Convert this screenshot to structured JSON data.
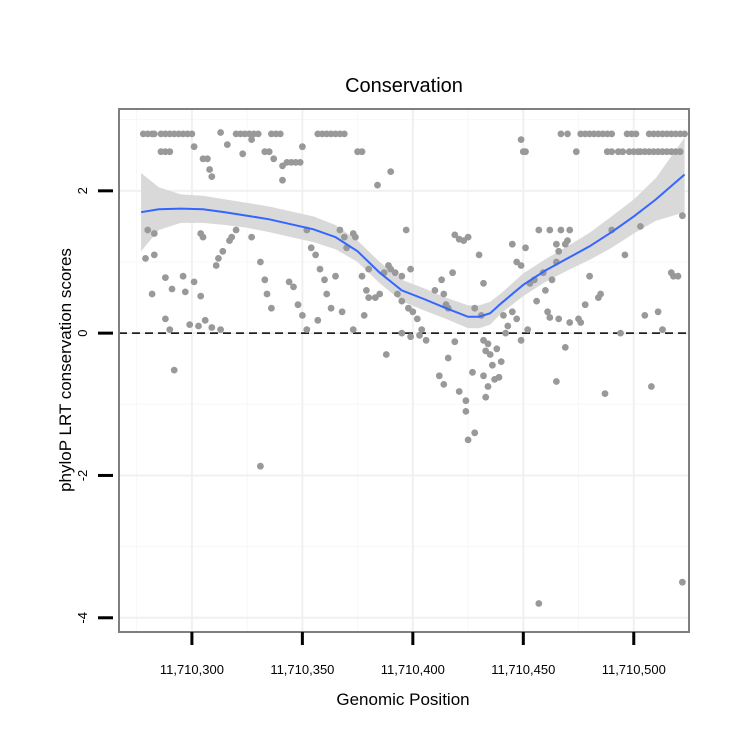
{
  "chart_data": {
    "type": "scatter",
    "title": "Conservation",
    "xlabel": "Genomic Position",
    "ylabel": "phyloP LRT conservation scores",
    "xlim": [
      11710267,
      11710525
    ],
    "ylim": [
      -4.2,
      3.15
    ],
    "x_ticks": [
      11710300,
      11710350,
      11710400,
      11710450,
      11710500
    ],
    "x_tick_labels": [
      "11,710,300",
      "11,710,350",
      "11,710,400",
      "11,710,450",
      "11,710,500"
    ],
    "y_ticks": [
      -4,
      -2,
      0,
      2
    ],
    "y_tick_labels": [
      "-4",
      "-2",
      "0",
      "2"
    ],
    "grid": true,
    "hline": {
      "y": 0,
      "style": "dashed"
    },
    "point_color": "#999999",
    "smooth_color": "#3366FF",
    "band_color": "#D9D9D9",
    "points": [
      [
        11710278,
        2.8
      ],
      [
        11710280,
        2.8
      ],
      [
        11710282,
        2.8
      ],
      [
        11710283,
        2.8
      ],
      [
        11710286,
        2.8
      ],
      [
        11710288,
        2.8
      ],
      [
        11710290,
        2.8
      ],
      [
        11710292,
        2.8
      ],
      [
        11710294,
        2.8
      ],
      [
        11710296,
        2.8
      ],
      [
        11710298,
        2.8
      ],
      [
        11710300,
        2.8
      ],
      [
        11710286,
        2.55
      ],
      [
        11710288,
        2.55
      ],
      [
        11710290,
        2.55
      ],
      [
        11710301,
        2.62
      ],
      [
        11710305,
        2.45
      ],
      [
        11710307,
        2.45
      ],
      [
        11710308,
        2.3
      ],
      [
        11710309,
        2.2
      ],
      [
        11710313,
        2.82
      ],
      [
        11710316,
        2.65
      ],
      [
        11710320,
        2.8
      ],
      [
        11710322,
        2.8
      ],
      [
        11710324,
        2.8
      ],
      [
        11710326,
        2.8
      ],
      [
        11710328,
        2.8
      ],
      [
        11710330,
        2.8
      ],
      [
        11710336,
        2.8
      ],
      [
        11710338,
        2.8
      ],
      [
        11710340,
        2.8
      ],
      [
        11710323,
        2.52
      ],
      [
        11710327,
        2.72
      ],
      [
        11710333,
        2.55
      ],
      [
        11710335,
        2.55
      ],
      [
        11710337,
        2.45
      ],
      [
        11710341,
        2.35
      ],
      [
        11710343,
        2.4
      ],
      [
        11710345,
        2.4
      ],
      [
        11710347,
        2.4
      ],
      [
        11710349,
        2.4
      ],
      [
        11710350,
        2.62
      ],
      [
        11710341,
        2.15
      ],
      [
        11710357,
        2.8
      ],
      [
        11710359,
        2.8
      ],
      [
        11710361,
        2.8
      ],
      [
        11710363,
        2.8
      ],
      [
        11710365,
        2.8
      ],
      [
        11710367,
        2.8
      ],
      [
        11710369,
        2.8
      ],
      [
        11710375,
        2.55
      ],
      [
        11710377,
        2.55
      ],
      [
        11710384,
        2.08
      ],
      [
        11710390,
        2.27
      ],
      [
        11710280,
        1.45
      ],
      [
        11710283,
        1.4
      ],
      [
        11710279,
        1.05
      ],
      [
        11710282,
        0.55
      ],
      [
        11710283,
        1.1
      ],
      [
        11710304,
        1.4
      ],
      [
        11710305,
        1.35
      ],
      [
        11710311,
        0.95
      ],
      [
        11710312,
        1.05
      ],
      [
        11710314,
        1.15
      ],
      [
        11710317,
        1.3
      ],
      [
        11710318,
        1.35
      ],
      [
        11710320,
        1.45
      ],
      [
        11710327,
        1.35
      ],
      [
        11710331,
        1.0
      ],
      [
        11710333,
        0.75
      ],
      [
        11710334,
        0.55
      ],
      [
        11710336,
        0.35
      ],
      [
        11710352,
        1.45
      ],
      [
        11710354,
        1.2
      ],
      [
        11710356,
        1.1
      ],
      [
        11710358,
        0.9
      ],
      [
        11710360,
        0.75
      ],
      [
        11710361,
        0.55
      ],
      [
        11710365,
        0.8
      ],
      [
        11710367,
        1.45
      ],
      [
        11710369,
        1.35
      ],
      [
        11710370,
        1.2
      ],
      [
        11710373,
        1.4
      ],
      [
        11710374,
        1.35
      ],
      [
        11710377,
        0.8
      ],
      [
        11710379,
        0.6
      ],
      [
        11710380,
        0.9
      ],
      [
        11710383,
        0.5
      ],
      [
        11710288,
        0.78
      ],
      [
        11710291,
        0.62
      ],
      [
        11710296,
        0.8
      ],
      [
        11710297,
        0.58
      ],
      [
        11710301,
        0.72
      ],
      [
        11710304,
        0.52
      ],
      [
        11710288,
        0.2
      ],
      [
        11710290,
        0.05
      ],
      [
        11710299,
        0.12
      ],
      [
        11710303,
        0.1
      ],
      [
        11710306,
        0.18
      ],
      [
        11710309,
        0.08
      ],
      [
        11710313,
        0.05
      ],
      [
        11710292,
        -0.52
      ],
      [
        11710344,
        0.72
      ],
      [
        11710346,
        0.65
      ],
      [
        11710348,
        0.4
      ],
      [
        11710350,
        0.25
      ],
      [
        11710352,
        0.05
      ],
      [
        11710357,
        0.18
      ],
      [
        11710363,
        0.35
      ],
      [
        11710368,
        0.3
      ],
      [
        11710373,
        0.05
      ],
      [
        11710378,
        0.25
      ],
      [
        11710380,
        0.5
      ],
      [
        11710331,
        -1.87
      ],
      [
        11710385,
        0.55
      ],
      [
        11710387,
        0.85
      ],
      [
        11710389,
        0.95
      ],
      [
        11710390,
        0.9
      ],
      [
        11710392,
        0.85
      ],
      [
        11710395,
        0.8
      ],
      [
        11710397,
        1.45
      ],
      [
        11710399,
        0.9
      ],
      [
        11710393,
        0.55
      ],
      [
        11710395,
        0.45
      ],
      [
        11710398,
        0.35
      ],
      [
        11710400,
        0.3
      ],
      [
        11710402,
        0.2
      ],
      [
        11710404,
        0.05
      ],
      [
        11710388,
        -0.3
      ],
      [
        11710395,
        0.0
      ],
      [
        11710399,
        -0.05
      ],
      [
        11710403,
        -0.03
      ],
      [
        11710406,
        -0.1
      ],
      [
        11710410,
        0.6
      ],
      [
        11710413,
        0.75
      ],
      [
        11710414,
        0.55
      ],
      [
        11710416,
        0.35
      ],
      [
        11710419,
        1.38
      ],
      [
        11710421,
        1.32
      ],
      [
        11710423,
        1.3
      ],
      [
        11710425,
        1.35
      ],
      [
        11710418,
        0.85
      ],
      [
        11710415,
        0.4
      ],
      [
        11710412,
        -0.6
      ],
      [
        11710414,
        -0.72
      ],
      [
        11710416,
        -0.35
      ],
      [
        11710419,
        -0.12
      ],
      [
        11710421,
        -0.82
      ],
      [
        11710424,
        -0.95
      ],
      [
        11710424,
        -1.1
      ],
      [
        11710425,
        -1.5
      ],
      [
        11710428,
        -1.4
      ],
      [
        11710427,
        -0.55
      ],
      [
        11710428,
        0.35
      ],
      [
        11710431,
        0.25
      ],
      [
        11710432,
        -0.1
      ],
      [
        11710433,
        -0.25
      ],
      [
        11710434,
        -0.15
      ],
      [
        11710435,
        -0.3
      ],
      [
        11710436,
        -0.45
      ],
      [
        11710437,
        -0.65
      ],
      [
        11710438,
        -0.22
      ],
      [
        11710439,
        -0.62
      ],
      [
        11710441,
        0.25
      ],
      [
        11710440,
        -0.4
      ],
      [
        11710430,
        1.1
      ],
      [
        11710432,
        0.7
      ],
      [
        11710432,
        -0.6
      ],
      [
        11710433,
        -0.9
      ],
      [
        11710434,
        -0.75
      ],
      [
        11710445,
        1.25
      ],
      [
        11710447,
        1.0
      ],
      [
        11710449,
        0.95
      ],
      [
        11710451,
        1.2
      ],
      [
        11710445,
        0.3
      ],
      [
        11710447,
        0.2
      ],
      [
        11710449,
        -0.1
      ],
      [
        11710452,
        0.05
      ],
      [
        11710453,
        0.7
      ],
      [
        11710455,
        0.75
      ],
      [
        11710456,
        0.45
      ],
      [
        11710457,
        1.45
      ],
      [
        11710459,
        0.85
      ],
      [
        11710460,
        0.6
      ],
      [
        11710461,
        0.3
      ],
      [
        11710462,
        0.22
      ],
      [
        11710463,
        0.75
      ],
      [
        11710465,
        1.0
      ],
      [
        11710466,
        1.15
      ],
      [
        11710467,
        1.45
      ],
      [
        11710469,
        1.25
      ],
      [
        11710470,
        1.3
      ],
      [
        11710471,
        1.45
      ],
      [
        11710442,
        0.0
      ],
      [
        11710443,
        0.1
      ],
      [
        11710466,
        0.2
      ],
      [
        11710469,
        -0.2
      ],
      [
        11710471,
        0.15
      ],
      [
        11710449,
        2.72
      ],
      [
        11710451,
        2.55
      ],
      [
        11710450,
        2.55
      ],
      [
        11710465,
        -0.68
      ],
      [
        11710457,
        -3.8
      ],
      [
        11710467,
        2.8
      ],
      [
        11710470,
        2.8
      ],
      [
        11710474,
        2.55
      ],
      [
        11710476,
        2.8
      ],
      [
        11710478,
        2.8
      ],
      [
        11710480,
        2.8
      ],
      [
        11710482,
        2.8
      ],
      [
        11710484,
        2.8
      ],
      [
        11710486,
        2.8
      ],
      [
        11710488,
        2.8
      ],
      [
        11710490,
        2.8
      ],
      [
        11710493,
        2.55
      ],
      [
        11710495,
        2.55
      ],
      [
        11710497,
        2.8
      ],
      [
        11710499,
        2.8
      ],
      [
        11710501,
        2.8
      ],
      [
        11710503,
        2.55
      ],
      [
        11710505,
        2.55
      ],
      [
        11710507,
        2.8
      ],
      [
        11710509,
        2.8
      ],
      [
        11710511,
        2.8
      ],
      [
        11710513,
        2.8
      ],
      [
        11710515,
        2.8
      ],
      [
        11710517,
        2.8
      ],
      [
        11710519,
        2.8
      ],
      [
        11710521,
        2.8
      ],
      [
        11710523,
        2.8
      ],
      [
        11710488,
        2.55
      ],
      [
        11710490,
        2.55
      ],
      [
        11710498,
        2.55
      ],
      [
        11710500,
        2.55
      ],
      [
        11710502,
        2.55
      ],
      [
        11710507,
        2.55
      ],
      [
        11710509,
        2.55
      ],
      [
        11710511,
        2.55
      ],
      [
        11710513,
        2.55
      ],
      [
        11710515,
        2.55
      ],
      [
        11710517,
        2.55
      ],
      [
        11710519,
        2.55
      ],
      [
        11710521,
        2.55
      ],
      [
        11710476,
        0.15
      ],
      [
        11710478,
        0.4
      ],
      [
        11710484,
        0.5
      ],
      [
        11710485,
        0.55
      ],
      [
        11710487,
        -0.85
      ],
      [
        11710490,
        1.45
      ],
      [
        11710494,
        0.0
      ],
      [
        11710496,
        1.1
      ],
      [
        11710503,
        1.5
      ],
      [
        11710505,
        0.25
      ],
      [
        11710508,
        -0.75
      ],
      [
        11710511,
        0.3
      ],
      [
        11710513,
        0.05
      ],
      [
        11710517,
        0.85
      ],
      [
        11710518,
        0.8
      ],
      [
        11710520,
        0.8
      ],
      [
        11710522,
        -3.5
      ],
      [
        11710522,
        1.65
      ],
      [
        11710462,
        1.45
      ],
      [
        11710465,
        1.25
      ],
      [
        11710475,
        0.2
      ],
      [
        11710480,
        0.8
      ]
    ],
    "smooth": {
      "x": [
        11710277,
        11710285,
        11710295,
        11710305,
        11710315,
        11710325,
        11710335,
        11710345,
        11710355,
        11710365,
        11710375,
        11710385,
        11710395,
        11710405,
        11710415,
        11710425,
        11710430,
        11710435,
        11710440,
        11710450,
        11710460,
        11710470,
        11710480,
        11710490,
        11710500,
        11710510,
        11710523
      ],
      "y": [
        1.7,
        1.74,
        1.75,
        1.74,
        1.7,
        1.65,
        1.6,
        1.53,
        1.46,
        1.35,
        1.15,
        0.85,
        0.6,
        0.48,
        0.35,
        0.23,
        0.23,
        0.28,
        0.42,
        0.68,
        0.88,
        1.05,
        1.22,
        1.42,
        1.64,
        1.88,
        2.23
      ],
      "lower": [
        1.15,
        1.45,
        1.55,
        1.55,
        1.52,
        1.48,
        1.42,
        1.35,
        1.28,
        1.18,
        1.0,
        0.7,
        0.45,
        0.32,
        0.2,
        0.07,
        0.07,
        0.12,
        0.28,
        0.52,
        0.72,
        0.88,
        1.03,
        1.2,
        1.4,
        1.58,
        1.7
      ],
      "upper": [
        2.25,
        2.05,
        1.95,
        1.93,
        1.88,
        1.83,
        1.78,
        1.71,
        1.64,
        1.52,
        1.3,
        1.0,
        0.75,
        0.63,
        0.5,
        0.39,
        0.39,
        0.44,
        0.56,
        0.84,
        1.04,
        1.22,
        1.41,
        1.64,
        1.88,
        2.18,
        2.75
      ]
    }
  }
}
